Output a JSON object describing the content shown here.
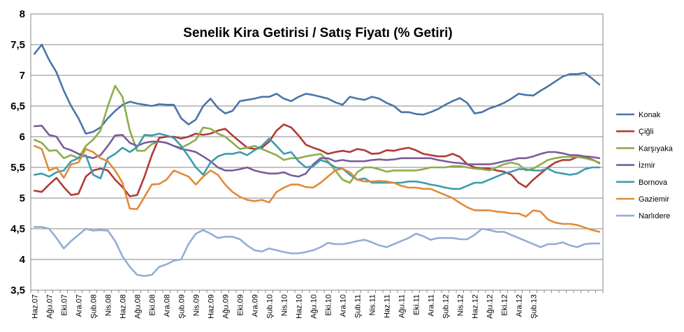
{
  "chart_data": {
    "type": "line",
    "title": "Senelik Kira Getirisi / Satış Fiyatı (% Getiri)",
    "xlabel": "",
    "ylabel": "",
    "ylim": [
      3.5,
      8
    ],
    "yticks": [
      "3,5",
      "4",
      "4,5",
      "5",
      "5,5",
      "6",
      "6,5",
      "7",
      "7,5",
      "8"
    ],
    "grid": true,
    "legend_position": "right",
    "x_tick_labels": [
      "Haz.07",
      "Ağu.07",
      "Eki.07",
      "Ara.07",
      "Şub.08",
      "Nis.08",
      "Haz.08",
      "Ağu.08",
      "Eki.08",
      "Ara.08",
      "Şub.09",
      "Nis.09",
      "Haz.09",
      "Ağu.09",
      "Eki.09",
      "Ara.09",
      "Şub.10",
      "Nis.10",
      "Haz.10",
      "Ağu.10",
      "Eki.10",
      "Ara.10",
      "Şub.11",
      "Nis.11",
      "Haz.11",
      "Ağu.11",
      "Eki.11",
      "Ara.11",
      "Şub.12",
      "Nis.12",
      "Haz.12",
      "Ağu.12",
      "Eki.12",
      "Ara.12",
      "Şub.13"
    ],
    "series": [
      {
        "name": "Konak",
        "color": "#4a74a8",
        "values": [
          7.35,
          7.5,
          7.25,
          7.05,
          6.75,
          6.5,
          6.3,
          6.05,
          6.08,
          6.15,
          6.3,
          6.42,
          6.52,
          6.57,
          6.54,
          6.52,
          6.5,
          6.53,
          6.52,
          6.52,
          6.3,
          6.2,
          6.28,
          6.5,
          6.62,
          6.47,
          6.38,
          6.42,
          6.58,
          6.6,
          6.62,
          6.65,
          6.65,
          6.7,
          6.62,
          6.58,
          6.65,
          6.7,
          6.68,
          6.65,
          6.62,
          6.56,
          6.52,
          6.65,
          6.62,
          6.6,
          6.65,
          6.62,
          6.55,
          6.5,
          6.4,
          6.4,
          6.37,
          6.36,
          6.4,
          6.45,
          6.52,
          6.58,
          6.63,
          6.55,
          6.38,
          6.4,
          6.46,
          6.5,
          6.55,
          6.62,
          6.7,
          6.68,
          6.67,
          6.75,
          6.82,
          6.9,
          6.98,
          7.02,
          7.02,
          7.04,
          6.95,
          6.85
        ]
      },
      {
        "name": "Çiğli",
        "color": "#b03a36",
        "values": [
          5.12,
          5.1,
          5.22,
          5.33,
          5.18,
          5.05,
          5.07,
          5.35,
          5.45,
          5.48,
          5.45,
          5.3,
          5.18,
          5.03,
          5.05,
          5.35,
          5.7,
          5.98,
          6.0,
          6.0,
          5.97,
          6.0,
          6.05,
          6.03,
          6.05,
          6.1,
          6.13,
          6.02,
          5.92,
          5.82,
          5.8,
          5.82,
          5.92,
          6.1,
          6.2,
          6.15,
          6.02,
          5.87,
          5.82,
          5.78,
          5.72,
          5.75,
          5.77,
          5.75,
          5.8,
          5.78,
          5.72,
          5.73,
          5.78,
          5.77,
          5.8,
          5.82,
          5.78,
          5.72,
          5.7,
          5.68,
          5.68,
          5.72,
          5.67,
          5.55,
          5.5,
          5.48,
          5.48,
          5.45,
          5.43,
          5.38,
          5.25,
          5.18,
          5.3,
          5.4,
          5.5,
          5.58,
          5.62,
          5.62,
          5.67,
          5.67,
          5.63,
          5.57
        ]
      },
      {
        "name": "Karşıyaka",
        "color": "#8dac4a",
        "values": [
          5.95,
          5.9,
          5.77,
          5.78,
          5.65,
          5.7,
          5.65,
          5.85,
          5.95,
          6.1,
          6.5,
          6.83,
          6.65,
          6.1,
          5.77,
          5.77,
          5.88,
          5.92,
          5.9,
          5.85,
          5.82,
          5.88,
          5.95,
          6.15,
          6.13,
          6.05,
          6.0,
          5.9,
          5.8,
          5.82,
          5.85,
          5.8,
          5.75,
          5.7,
          5.62,
          5.65,
          5.65,
          5.68,
          5.7,
          5.72,
          5.6,
          5.45,
          5.3,
          5.25,
          5.42,
          5.5,
          5.5,
          5.47,
          5.43,
          5.45,
          5.45,
          5.45,
          5.45,
          5.47,
          5.5,
          5.5,
          5.5,
          5.52,
          5.52,
          5.5,
          5.48,
          5.47,
          5.45,
          5.5,
          5.55,
          5.58,
          5.55,
          5.45,
          5.48,
          5.55,
          5.62,
          5.65,
          5.67,
          5.67,
          5.67,
          5.65,
          5.62,
          5.58
        ]
      },
      {
        "name": "İzmir",
        "color": "#7a5c9a",
        "values": [
          6.17,
          6.18,
          6.03,
          6.0,
          5.82,
          5.78,
          5.72,
          5.68,
          5.65,
          5.7,
          5.85,
          6.02,
          6.03,
          5.9,
          5.85,
          5.9,
          5.92,
          5.92,
          5.9,
          5.85,
          5.8,
          5.78,
          5.75,
          5.68,
          5.6,
          5.5,
          5.45,
          5.45,
          5.47,
          5.5,
          5.45,
          5.42,
          5.4,
          5.4,
          5.42,
          5.37,
          5.35,
          5.4,
          5.55,
          5.65,
          5.65,
          5.6,
          5.62,
          5.6,
          5.6,
          5.6,
          5.62,
          5.63,
          5.62,
          5.63,
          5.65,
          5.65,
          5.65,
          5.65,
          5.65,
          5.62,
          5.6,
          5.58,
          5.57,
          5.55,
          5.55,
          5.55,
          5.55,
          5.57,
          5.6,
          5.62,
          5.65,
          5.65,
          5.68,
          5.72,
          5.75,
          5.75,
          5.73,
          5.7,
          5.7,
          5.68,
          5.67,
          5.65
        ]
      },
      {
        "name": "Bornova",
        "color": "#3b9cad",
        "values": [
          5.38,
          5.4,
          5.35,
          5.42,
          5.45,
          5.6,
          5.65,
          5.7,
          5.38,
          5.32,
          5.65,
          5.72,
          5.82,
          5.75,
          5.83,
          6.03,
          6.02,
          6.05,
          6.02,
          5.98,
          5.85,
          5.68,
          5.5,
          5.38,
          5.58,
          5.68,
          5.72,
          5.72,
          5.75,
          5.7,
          5.78,
          5.85,
          5.97,
          5.85,
          5.72,
          5.75,
          5.6,
          5.5,
          5.52,
          5.62,
          5.58,
          5.5,
          5.48,
          5.38,
          5.3,
          5.32,
          5.25,
          5.25,
          5.25,
          5.25,
          5.25,
          5.27,
          5.27,
          5.25,
          5.22,
          5.2,
          5.17,
          5.15,
          5.15,
          5.2,
          5.25,
          5.25,
          5.3,
          5.35,
          5.4,
          5.43,
          5.47,
          5.47,
          5.45,
          5.45,
          5.48,
          5.42,
          5.4,
          5.38,
          5.4,
          5.47,
          5.5,
          5.5
        ]
      },
      {
        "name": "Gaziemir",
        "color": "#e18b37",
        "values": [
          5.85,
          5.8,
          5.45,
          5.5,
          5.33,
          5.55,
          5.58,
          5.8,
          5.75,
          5.65,
          5.6,
          5.45,
          5.25,
          4.83,
          4.82,
          5.02,
          5.22,
          5.23,
          5.3,
          5.45,
          5.4,
          5.35,
          5.22,
          5.35,
          5.45,
          5.38,
          5.22,
          5.1,
          5.02,
          4.97,
          4.95,
          4.97,
          4.93,
          5.1,
          5.17,
          5.22,
          5.22,
          5.18,
          5.17,
          5.25,
          5.35,
          5.45,
          5.48,
          5.42,
          5.3,
          5.27,
          5.27,
          5.28,
          5.27,
          5.25,
          5.2,
          5.17,
          5.17,
          5.15,
          5.15,
          5.1,
          5.05,
          5.0,
          4.92,
          4.85,
          4.8,
          4.8,
          4.8,
          4.78,
          4.77,
          4.75,
          4.75,
          4.7,
          4.8,
          4.78,
          4.65,
          4.6,
          4.58,
          4.58,
          4.56,
          4.52,
          4.48,
          4.45
        ]
      },
      {
        "name": "Narlıdere",
        "color": "#93aed4",
        "values": [
          4.53,
          4.53,
          4.5,
          4.35,
          4.18,
          4.3,
          4.4,
          4.5,
          4.47,
          4.48,
          4.47,
          4.3,
          4.05,
          3.88,
          3.75,
          3.73,
          3.75,
          3.88,
          3.92,
          3.98,
          4.0,
          4.25,
          4.42,
          4.48,
          4.42,
          4.35,
          4.37,
          4.37,
          4.33,
          4.23,
          4.15,
          4.13,
          4.18,
          4.15,
          4.12,
          4.1,
          4.1,
          4.12,
          4.15,
          4.2,
          4.27,
          4.25,
          4.25,
          4.27,
          4.3,
          4.32,
          4.28,
          4.23,
          4.2,
          4.25,
          4.3,
          4.35,
          4.42,
          4.38,
          4.32,
          4.35,
          4.35,
          4.35,
          4.33,
          4.33,
          4.4,
          4.5,
          4.48,
          4.45,
          4.45,
          4.4,
          4.35,
          4.3,
          4.25,
          4.2,
          4.25,
          4.25,
          4.28,
          4.23,
          4.2,
          4.25,
          4.26,
          4.26
        ]
      }
    ]
  }
}
